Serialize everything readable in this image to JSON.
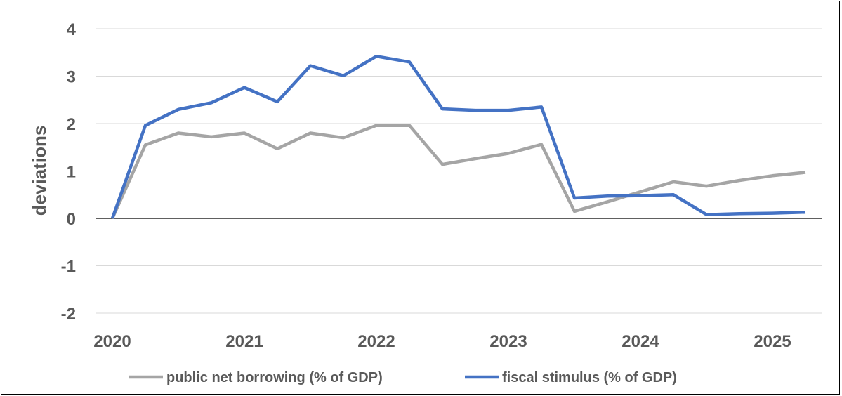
{
  "chart_data": {
    "type": "line",
    "title": "",
    "xlabel": "",
    "ylabel": "deviations",
    "ylim": [
      -2,
      4
    ],
    "y_ticks": [
      4,
      3,
      2,
      1,
      0,
      -1,
      -2
    ],
    "x_tick_labels": [
      "2020",
      "2021",
      "2022",
      "2023",
      "2024",
      "2025"
    ],
    "grid": true,
    "legend_position": "bottom",
    "x": [
      "2020Q1",
      "2020Q2",
      "2020Q3",
      "2020Q4",
      "2021Q1",
      "2021Q2",
      "2021Q3",
      "2021Q4",
      "2022Q1",
      "2022Q2",
      "2022Q3",
      "2022Q4",
      "2023Q1",
      "2023Q2",
      "2023Q3",
      "2023Q4",
      "2024Q1",
      "2024Q2",
      "2024Q3",
      "2024Q4",
      "2025Q1",
      "2025Q2"
    ],
    "series": [
      {
        "name": "public net borrowing (% of GDP)",
        "color": "#A5A5A5",
        "values": [
          0.0,
          1.55,
          1.8,
          1.72,
          1.8,
          1.47,
          1.8,
          1.7,
          1.96,
          1.96,
          1.14,
          1.26,
          1.37,
          1.56,
          0.15,
          0.35,
          0.56,
          0.77,
          0.68,
          0.8,
          0.9,
          0.97
        ]
      },
      {
        "name": "fiscal stimulus (% of GDP)",
        "color": "#4472C4",
        "values": [
          0.0,
          1.96,
          2.3,
          2.44,
          2.76,
          2.46,
          3.22,
          3.01,
          3.42,
          3.3,
          2.31,
          2.28,
          2.28,
          2.35,
          0.43,
          0.47,
          0.48,
          0.5,
          0.08,
          0.1,
          0.11,
          0.13
        ]
      }
    ]
  }
}
